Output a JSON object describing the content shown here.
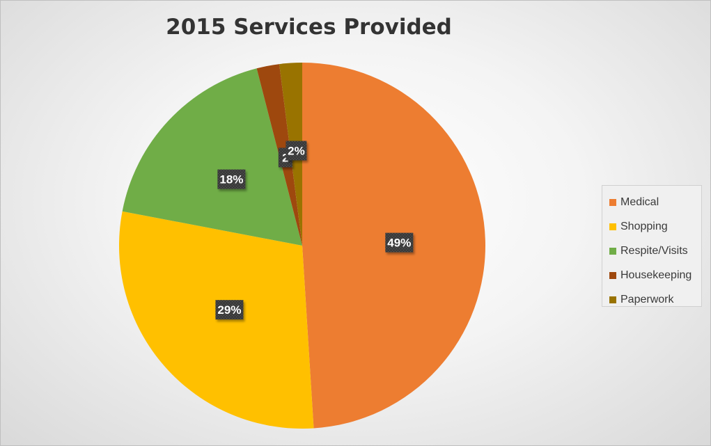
{
  "chart_data": {
    "type": "pie",
    "title": "2015 Services Provided",
    "categories": [
      "Medical",
      "Shopping",
      "Respite/Visits",
      "Housekeeping",
      "Paperwork"
    ],
    "values": [
      49,
      29,
      18,
      2,
      2
    ],
    "data_labels": [
      "49%",
      "29%",
      "18%",
      "2",
      "2%"
    ],
    "colors": [
      "#ED7D31",
      "#FFC000",
      "#70AD47",
      "#9E480E",
      "#997300"
    ],
    "legend_position": "right"
  }
}
